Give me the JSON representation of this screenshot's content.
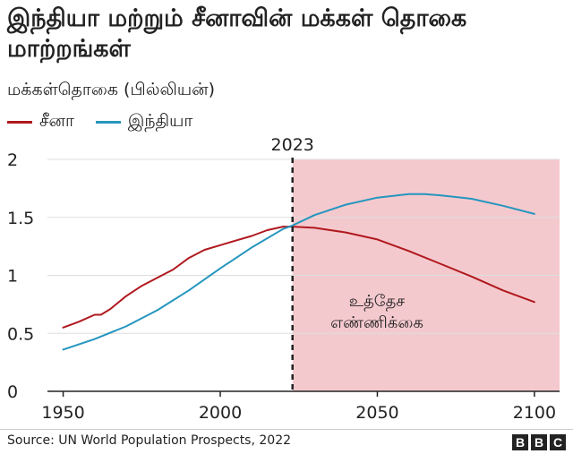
{
  "title": "இந்தியா மற்றும் சீனாவின் மக்கள் தொகை மாற்றங்கள்",
  "footer": {
    "source": "Source: UN World Population Prospects, 2022",
    "logo_letters": [
      "B",
      "B",
      "C"
    ]
  },
  "chart_data": {
    "type": "line",
    "ylabel": "மக்கள்தொகை (பில்லியன்)",
    "xlim": [
      1945,
      2108
    ],
    "ylim": [
      0,
      2
    ],
    "x_ticks": [
      "1950",
      "2000",
      "2050",
      "2100"
    ],
    "y_ticks": [
      "0",
      "0.5",
      "1",
      "1.5",
      "2"
    ],
    "grid": true,
    "legend_position": "top-left",
    "marker": {
      "x": 2023,
      "label": "2023"
    },
    "projection": {
      "from": 2023,
      "to": 2108,
      "label_lines": [
        "உத்தேச",
        "எண்ணிக்கை"
      ],
      "color": "#f4c9ce"
    },
    "series": [
      {
        "name": "சீனா",
        "color": "#b0191e",
        "x": [
          1950,
          1955,
          1960,
          1962,
          1965,
          1970,
          1975,
          1980,
          1985,
          1990,
          1995,
          2000,
          2005,
          2010,
          2015,
          2020,
          2023,
          2030,
          2040,
          2050,
          2060,
          2070,
          2080,
          2090,
          2100
        ],
        "y": [
          0.55,
          0.6,
          0.66,
          0.66,
          0.71,
          0.82,
          0.91,
          0.98,
          1.05,
          1.15,
          1.22,
          1.26,
          1.3,
          1.34,
          1.39,
          1.42,
          1.42,
          1.41,
          1.37,
          1.31,
          1.21,
          1.1,
          0.99,
          0.87,
          0.77
        ]
      },
      {
        "name": "இந்தியா",
        "color": "#2596be",
        "x": [
          1950,
          1960,
          1970,
          1980,
          1990,
          2000,
          2010,
          2020,
          2023,
          2030,
          2040,
          2050,
          2060,
          2065,
          2070,
          2080,
          2090,
          2100
        ],
        "y": [
          0.36,
          0.45,
          0.56,
          0.7,
          0.87,
          1.06,
          1.24,
          1.4,
          1.43,
          1.52,
          1.61,
          1.67,
          1.7,
          1.7,
          1.69,
          1.66,
          1.6,
          1.53
        ]
      }
    ]
  }
}
